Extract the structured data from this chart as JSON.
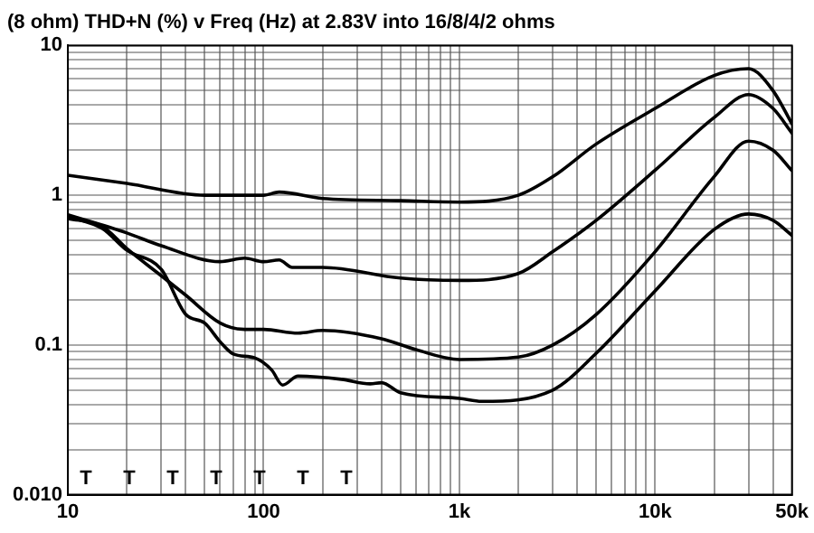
{
  "chart_data": {
    "type": "line",
    "title": "(8 ohm) THD+N (%) v Freq (Hz) at 2.83V into 16/8/4/2 ohms",
    "log": "xy",
    "grid": true,
    "legend": false,
    "marker": "none",
    "line_style": "solid",
    "xlim": [
      10,
      50000
    ],
    "ylim": [
      0.01,
      10
    ],
    "xticks": [
      10,
      {
        "value": 20,
        "label": null
      },
      {
        "value": 30,
        "label": null
      },
      {
        "value": 40,
        "label": null
      },
      {
        "value": 50,
        "label": null
      },
      {
        "value": 60,
        "label": null
      },
      {
        "value": 70,
        "label": null
      },
      {
        "value": 80,
        "label": null
      },
      {
        "value": 90,
        "label": null
      },
      100,
      {
        "value": 200,
        "label": null
      },
      {
        "value": 300,
        "label": null
      },
      {
        "value": 400,
        "label": null
      },
      {
        "value": 500,
        "label": null
      },
      {
        "value": 600,
        "label": null
      },
      {
        "value": 700,
        "label": null
      },
      {
        "value": 800,
        "label": null
      },
      {
        "value": 900,
        "label": null
      },
      {
        "value": 1000,
        "label": "1k"
      },
      {
        "value": 2000,
        "label": null
      },
      {
        "value": 3000,
        "label": null
      },
      {
        "value": 4000,
        "label": null
      },
      {
        "value": 5000,
        "label": null
      },
      {
        "value": 6000,
        "label": null
      },
      {
        "value": 7000,
        "label": null
      },
      {
        "value": 8000,
        "label": null
      },
      {
        "value": 9000,
        "label": null
      },
      {
        "value": 10000,
        "label": "10k"
      },
      {
        "value": 20000,
        "label": null
      },
      {
        "value": 30000,
        "label": null
      },
      {
        "value": 40000,
        "label": null
      },
      {
        "value": 50000,
        "label": "50k"
      }
    ],
    "yticks": [
      {
        "value": 0.01,
        "label": "0.010"
      },
      {
        "value": 0.02,
        "label": null
      },
      {
        "value": 0.03,
        "label": null
      },
      {
        "value": 0.04,
        "label": null
      },
      {
        "value": 0.05,
        "label": null
      },
      {
        "value": 0.06,
        "label": null
      },
      {
        "value": 0.07,
        "label": null
      },
      {
        "value": 0.08,
        "label": null
      },
      {
        "value": 0.09,
        "label": null
      },
      0.1,
      {
        "value": 0.2,
        "label": null
      },
      {
        "value": 0.3,
        "label": null
      },
      {
        "value": 0.4,
        "label": null
      },
      {
        "value": 0.5,
        "label": null
      },
      {
        "value": 0.6,
        "label": null
      },
      {
        "value": 0.7,
        "label": null
      },
      {
        "value": 0.8,
        "label": null
      },
      {
        "value": 0.9,
        "label": null
      },
      1,
      {
        "value": 2,
        "label": null
      },
      {
        "value": 3,
        "label": null
      },
      {
        "value": 4,
        "label": null
      },
      {
        "value": 5,
        "label": null
      },
      {
        "value": 6,
        "label": null
      },
      {
        "value": 7,
        "label": null
      },
      {
        "value": 8,
        "label": null
      },
      {
        "value": 9,
        "label": null
      },
      10
    ],
    "series": [
      {
        "color": "#000000",
        "x": [
          10,
          20,
          50,
          100,
          120,
          200,
          500,
          1000,
          2000,
          3000,
          5000,
          10000,
          20000,
          30000,
          40000,
          50000
        ],
        "values": [
          1.36,
          1.2,
          1.0,
          1.0,
          1.05,
          0.95,
          0.92,
          0.9,
          1.0,
          1.33,
          2.2,
          3.8,
          6.3,
          7,
          5,
          3
        ]
      },
      {
        "color": "#000000",
        "x": [
          10,
          20,
          30,
          60,
          80,
          100,
          120,
          140,
          200,
          500,
          1000,
          2000,
          3000,
          5000,
          10000,
          20000,
          30000,
          40000,
          50000
        ],
        "values": [
          0.74,
          0.56,
          0.46,
          0.36,
          0.38,
          0.36,
          0.37,
          0.33,
          0.33,
          0.28,
          0.27,
          0.3,
          0.42,
          0.68,
          1.47,
          3.3,
          4.7,
          3.8,
          2.6
        ]
      },
      {
        "color": "#000000",
        "x": [
          10,
          15,
          20,
          30,
          40,
          60,
          80,
          100,
          150,
          200,
          400,
          600,
          1000,
          2000,
          3000,
          5000,
          10000,
          20000,
          30000,
          40000,
          50000
        ],
        "values": [
          0.7,
          0.62,
          0.44,
          0.29,
          0.215,
          0.14,
          0.127,
          0.127,
          0.12,
          0.125,
          0.11,
          0.093,
          0.08,
          0.083,
          0.1,
          0.16,
          0.42,
          1.33,
          2.3,
          2,
          1.46
        ]
      },
      {
        "color": "#000000",
        "x": [
          10,
          15,
          20,
          30,
          40,
          50,
          60,
          70,
          90,
          110,
          125,
          150,
          250,
          350,
          400,
          500,
          1000,
          1300,
          3000,
          5000,
          10000,
          20000,
          30000,
          40000,
          50000
        ],
        "values": [
          0.72,
          0.6,
          0.43,
          0.32,
          0.16,
          0.14,
          0.105,
          0.087,
          0.082,
          0.068,
          0.054,
          0.062,
          0.059,
          0.055,
          0.056,
          0.048,
          0.044,
          0.042,
          0.05,
          0.088,
          0.23,
          0.59,
          0.75,
          0.68,
          0.54
        ]
      }
    ],
    "annotations": [
      "T",
      "T",
      "T",
      "T",
      "T",
      "T",
      "T"
    ]
  }
}
